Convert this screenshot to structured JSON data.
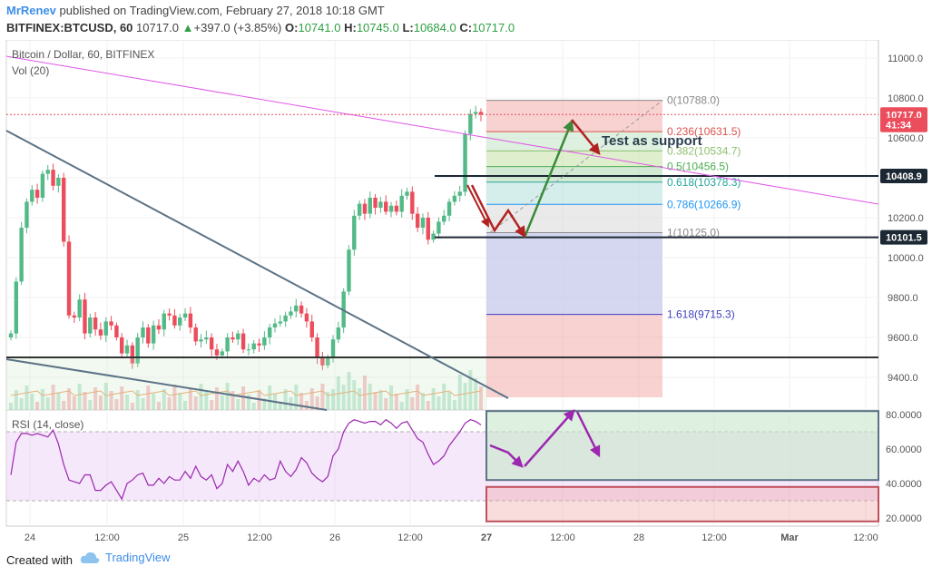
{
  "header": {
    "author": "MrRenev",
    "published_text": "published on TradingView.com, February 27, 2018 10:18 GMT",
    "symbol": "BITFINEX:BTCUSD, 60",
    "last": "10717.0",
    "change": "+397.0 (+3.85%)",
    "ohlc": {
      "o_label": "O:",
      "o": "10741.0",
      "h_label": "H:",
      "h": "10745.0",
      "l_label": "L:",
      "l": "10684.0",
      "c_label": "C:",
      "c": "10717.0"
    }
  },
  "legend": {
    "title": "Bitcoin / Dollar, 60, BITFINEX",
    "volume": "Vol (20)"
  },
  "rsi_legend": "RSI (14, close)",
  "annotation_text": "Test as support",
  "colors": {
    "up": "#53b987",
    "down": "#eb4d5c",
    "trend_line": "#5c7286",
    "pink_line": "#e056e8",
    "rsi_line": "#9c27b0",
    "arrow_green": "#3a8a3a",
    "arrow_red": "#b22222",
    "arrow_purple": "#9c27b0",
    "brand": "#3d8ee8"
  },
  "chart_data": {
    "type": "candlestick",
    "timeframe": "60",
    "price_axis": {
      "ticks": [
        "11000.0",
        "10800.0",
        "10600.0",
        "10400.0",
        "10200.0",
        "10000.0",
        "9800.0",
        "9600.0",
        "9400.0"
      ],
      "tick_values": [
        11000,
        10800,
        10600,
        10400,
        10200,
        10000,
        9800,
        9600,
        9400
      ],
      "range": [
        9300,
        11100
      ]
    },
    "price_badges": [
      {
        "label": "10717.0",
        "value": 10717,
        "color": "#eb4d5c"
      },
      {
        "label": "41:34",
        "value": 10665,
        "color": "#eb4d5c"
      },
      {
        "label": "10408.9",
        "value": 10408.9,
        "color": "#1c2833"
      },
      {
        "label": "10101.5",
        "value": 10101.5,
        "color": "#1c2833"
      }
    ],
    "rsi_axis": {
      "ticks": [
        "80.0000",
        "60.0000",
        "40.0000",
        "20.0000"
      ],
      "tick_values": [
        80,
        60,
        40,
        20
      ],
      "range": [
        15,
        85
      ]
    },
    "time_axis": [
      "24",
      "12:00",
      "25",
      "12:00",
      "26",
      "12:00",
      "27",
      "12:00",
      "28",
      "12:00",
      "Mar",
      "12:00"
    ],
    "time_axis_bold": [
      false,
      false,
      false,
      false,
      false,
      false,
      true,
      false,
      false,
      false,
      true,
      false
    ],
    "fibonacci": [
      {
        "level": "0",
        "value": 10788.0,
        "label": "0(10788.0)",
        "color": "#8a8a8a"
      },
      {
        "level": "0.236",
        "value": 10631.5,
        "label": "0.236(10631.5)",
        "color": "#d9534f"
      },
      {
        "level": "0.382",
        "value": 10534.7,
        "label": "0.382(10534.7)",
        "color": "#8fbf6f"
      },
      {
        "level": "0.5",
        "value": 10456.5,
        "label": "0.5(10456.5)",
        "color": "#4caf50"
      },
      {
        "level": "0.618",
        "value": 10378.3,
        "label": "0.618(10378.3)",
        "color": "#26a69a"
      },
      {
        "level": "0.786",
        "value": 10266.9,
        "label": "0.786(10266.9)",
        "color": "#2196f3"
      },
      {
        "level": "1",
        "value": 10125.0,
        "label": "1(10125.0)",
        "color": "#8a8a8a"
      },
      {
        "level": "1.618",
        "value": 9715.3,
        "label": "1.618(9715.3)",
        "color": "#3f3fbf"
      }
    ],
    "horizontal_levels": [
      10408.9,
      10101.5,
      9500
    ],
    "closes": [
      9620,
      9880,
      10150,
      10280,
      10340,
      10300,
      10420,
      10440,
      10360,
      10400,
      10080,
      9710,
      9700,
      9790,
      9620,
      9700,
      9640,
      9610,
      9680,
      9660,
      9600,
      9520,
      9560,
      9470,
      9600,
      9650,
      9570,
      9660,
      9640,
      9720,
      9710,
      9660,
      9700,
      9720,
      9650,
      9580,
      9590,
      9600,
      9540,
      9510,
      9530,
      9600,
      9590,
      9620,
      9540,
      9540,
      9570,
      9560,
      9600,
      9650,
      9670,
      9680,
      9710,
      9730,
      9760,
      9720,
      9680,
      9600,
      9500,
      9460,
      9500,
      9590,
      9650,
      9830,
      10040,
      10210,
      10270,
      10220,
      10300,
      10250,
      10280,
      10230,
      10260,
      10230,
      10310,
      10330,
      10220,
      10150,
      10200,
      10090,
      10120,
      10180,
      10210,
      10280,
      10310,
      10330,
      10620,
      10720,
      10730,
      10717
    ],
    "rsi": [
      45,
      64,
      69,
      69,
      68,
      69,
      68,
      67,
      71,
      63,
      51,
      42,
      41,
      40,
      45,
      45,
      36,
      36,
      39,
      41,
      36,
      31,
      40,
      42,
      45,
      46,
      39,
      39,
      43,
      40,
      44,
      42,
      42,
      47,
      43,
      50,
      44,
      42,
      45,
      37,
      40,
      51,
      47,
      53,
      47,
      39,
      43,
      41,
      45,
      42,
      43,
      53,
      47,
      44,
      48,
      55,
      52,
      46,
      43,
      41,
      44,
      56,
      60,
      70,
      75,
      77,
      76,
      75,
      76,
      76,
      74,
      77,
      75,
      72,
      75,
      76,
      71,
      66,
      64,
      57,
      51,
      53,
      56,
      62,
      66,
      70,
      75,
      77,
      76,
      74
    ]
  }
}
